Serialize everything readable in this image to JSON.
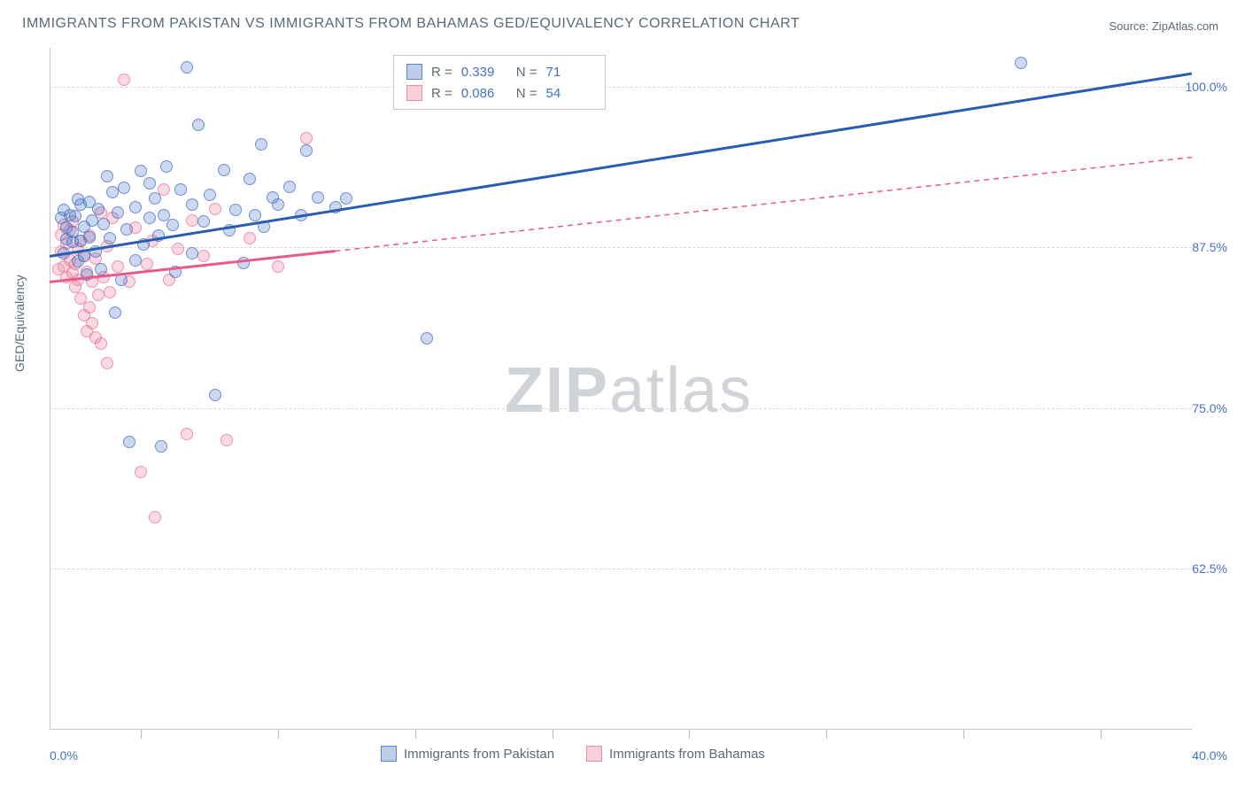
{
  "title": "IMMIGRANTS FROM PAKISTAN VS IMMIGRANTS FROM BAHAMAS GED/EQUIVALENCY CORRELATION CHART",
  "source": "Source: ZipAtlas.com",
  "ylabel": "GED/Equivalency",
  "watermark_a": "ZIP",
  "watermark_b": "atlas",
  "chart": {
    "type": "scatter",
    "xlim": [
      0,
      40
    ],
    "ylim": [
      50,
      103
    ],
    "xlabel_min": "0.0%",
    "xlabel_max": "40.0%",
    "xtick_positions": [
      3.2,
      8,
      12.8,
      17.6,
      22.4,
      27.2,
      32,
      36.8
    ],
    "y_gridlines": [
      62.5,
      75.0,
      87.5,
      100.0
    ],
    "y_gridline_labels": [
      "62.5%",
      "75.0%",
      "87.5%",
      "100.0%"
    ],
    "background_color": "#ffffff",
    "grid_color": "#d8d8d8",
    "axis_color": "#c8c8c8",
    "tick_label_color": "#4472c4",
    "text_color": "#5a6a78"
  },
  "series_a": {
    "name": "Immigrants from Pakistan",
    "color_fill": "rgba(68,114,196,0.28)",
    "color_stroke": "rgba(68,114,196,0.7)",
    "marker_radius": 7,
    "r_value": "0.339",
    "n_value": "71",
    "trend": {
      "x1": 0,
      "y1": 86.8,
      "x2": 40,
      "y2": 101.0,
      "stroke": "#2a5db0",
      "width": 3,
      "dash": "none"
    },
    "points": [
      [
        0.4,
        89.8
      ],
      [
        0.5,
        87.0
      ],
      [
        0.5,
        90.4
      ],
      [
        0.6,
        88.1
      ],
      [
        0.6,
        89.0
      ],
      [
        0.7,
        90.0
      ],
      [
        0.8,
        87.9
      ],
      [
        0.8,
        88.7
      ],
      [
        0.9,
        89.9
      ],
      [
        1.0,
        91.2
      ],
      [
        1.0,
        86.4
      ],
      [
        1.1,
        88.0
      ],
      [
        1.1,
        90.8
      ],
      [
        1.2,
        89.1
      ],
      [
        1.2,
        86.8
      ],
      [
        1.3,
        85.4
      ],
      [
        1.4,
        88.3
      ],
      [
        1.4,
        91.0
      ],
      [
        1.5,
        89.6
      ],
      [
        1.6,
        87.2
      ],
      [
        1.7,
        90.5
      ],
      [
        1.8,
        85.8
      ],
      [
        1.9,
        89.3
      ],
      [
        2.0,
        93.0
      ],
      [
        2.1,
        88.2
      ],
      [
        2.2,
        91.8
      ],
      [
        2.3,
        82.4
      ],
      [
        2.4,
        90.2
      ],
      [
        2.5,
        85.0
      ],
      [
        2.6,
        92.1
      ],
      [
        2.7,
        88.9
      ],
      [
        2.8,
        72.4
      ],
      [
        3.0,
        90.6
      ],
      [
        3.0,
        86.5
      ],
      [
        3.2,
        93.4
      ],
      [
        3.3,
        87.7
      ],
      [
        3.5,
        89.8
      ],
      [
        3.5,
        92.5
      ],
      [
        3.7,
        91.3
      ],
      [
        3.8,
        88.4
      ],
      [
        3.9,
        72.0
      ],
      [
        4.0,
        90.0
      ],
      [
        4.1,
        93.8
      ],
      [
        4.3,
        89.2
      ],
      [
        4.4,
        85.6
      ],
      [
        4.6,
        92.0
      ],
      [
        4.8,
        101.5
      ],
      [
        5.0,
        90.8
      ],
      [
        5.0,
        87.0
      ],
      [
        5.2,
        97.0
      ],
      [
        5.4,
        89.5
      ],
      [
        5.6,
        91.6
      ],
      [
        5.8,
        76.0
      ],
      [
        6.1,
        93.5
      ],
      [
        6.3,
        88.8
      ],
      [
        6.5,
        90.4
      ],
      [
        6.8,
        86.3
      ],
      [
        7.0,
        92.8
      ],
      [
        7.2,
        90.0
      ],
      [
        7.4,
        95.5
      ],
      [
        7.5,
        89.1
      ],
      [
        7.8,
        91.4
      ],
      [
        8.0,
        90.8
      ],
      [
        8.4,
        92.2
      ],
      [
        8.8,
        90.0
      ],
      [
        9.0,
        95.0
      ],
      [
        9.4,
        91.4
      ],
      [
        10.0,
        90.6
      ],
      [
        10.4,
        91.3
      ],
      [
        13.2,
        80.4
      ],
      [
        34.0,
        101.8
      ]
    ]
  },
  "series_b": {
    "name": "Immigrants from Bahamas",
    "color_fill": "rgba(235,120,150,0.28)",
    "color_stroke": "rgba(235,120,150,0.7)",
    "marker_radius": 7,
    "r_value": "0.086",
    "n_value": "54",
    "trend_solid": {
      "x1": 0,
      "y1": 84.8,
      "x2": 10,
      "y2": 87.2,
      "stroke": "#e95a8a",
      "width": 3,
      "dash": "none"
    },
    "trend_dashed": {
      "x1": 10,
      "y1": 87.2,
      "x2": 40,
      "y2": 94.5,
      "stroke": "#e95a8a",
      "width": 1.5,
      "dash": "6,5"
    },
    "points": [
      [
        0.3,
        85.8
      ],
      [
        0.4,
        87.2
      ],
      [
        0.4,
        88.5
      ],
      [
        0.5,
        86.0
      ],
      [
        0.5,
        89.2
      ],
      [
        0.6,
        85.2
      ],
      [
        0.6,
        87.8
      ],
      [
        0.7,
        86.5
      ],
      [
        0.7,
        88.8
      ],
      [
        0.8,
        85.5
      ],
      [
        0.8,
        89.5
      ],
      [
        0.9,
        86.2
      ],
      [
        0.9,
        84.4
      ],
      [
        1.0,
        87.4
      ],
      [
        1.0,
        85.0
      ],
      [
        1.1,
        88.0
      ],
      [
        1.1,
        83.5
      ],
      [
        1.2,
        86.8
      ],
      [
        1.2,
        82.2
      ],
      [
        1.3,
        85.6
      ],
      [
        1.3,
        81.0
      ],
      [
        1.4,
        88.4
      ],
      [
        1.4,
        82.8
      ],
      [
        1.5,
        84.8
      ],
      [
        1.5,
        81.6
      ],
      [
        1.6,
        86.6
      ],
      [
        1.6,
        80.5
      ],
      [
        1.7,
        83.8
      ],
      [
        1.8,
        90.2
      ],
      [
        1.8,
        80.0
      ],
      [
        1.9,
        85.2
      ],
      [
        2.0,
        78.5
      ],
      [
        2.0,
        87.6
      ],
      [
        2.1,
        84.0
      ],
      [
        2.2,
        89.8
      ],
      [
        2.4,
        86.0
      ],
      [
        2.6,
        100.5
      ],
      [
        2.8,
        84.8
      ],
      [
        3.0,
        89.0
      ],
      [
        3.2,
        70.0
      ],
      [
        3.4,
        86.2
      ],
      [
        3.6,
        88.0
      ],
      [
        3.7,
        66.5
      ],
      [
        4.0,
        92.0
      ],
      [
        4.2,
        85.0
      ],
      [
        4.5,
        87.4
      ],
      [
        4.8,
        73.0
      ],
      [
        5.0,
        89.6
      ],
      [
        5.4,
        86.8
      ],
      [
        5.8,
        90.5
      ],
      [
        6.2,
        72.5
      ],
      [
        7.0,
        88.2
      ],
      [
        8.0,
        86.0
      ],
      [
        9.0,
        96.0
      ]
    ]
  },
  "legend_top": {
    "r_label": "R =",
    "n_label": "N ="
  }
}
